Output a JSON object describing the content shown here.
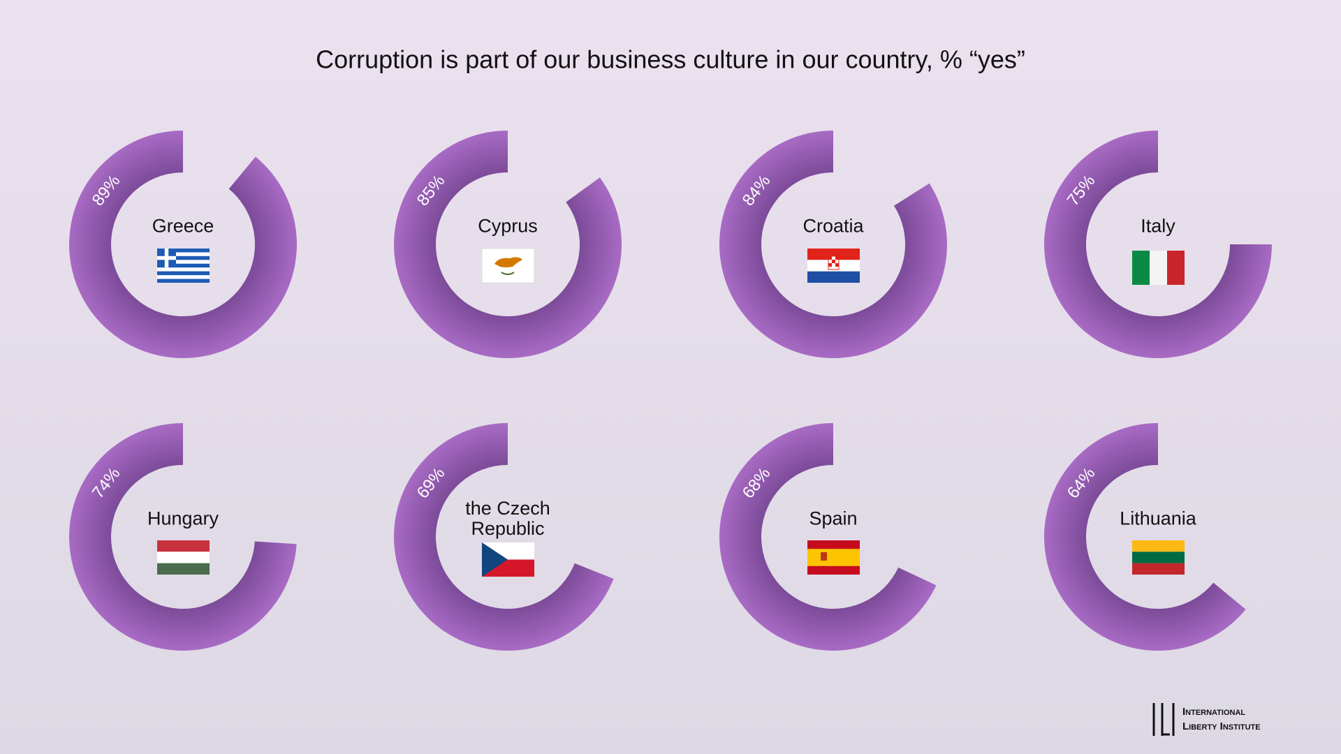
{
  "chart_data": {
    "type": "donut",
    "title": "Corruption is part of our business culture in our country, % “yes”",
    "categories": [
      "Greece",
      "Cyprus",
      "Croatia",
      "Italy",
      "Hungary",
      "the Czech Republic",
      "Spain",
      "Lithuania"
    ],
    "values": [
      89,
      85,
      84,
      75,
      74,
      69,
      68,
      64
    ],
    "value_labels": [
      "89%",
      "85%",
      "84%",
      "75%",
      "74%",
      "69%",
      "68%",
      "64%"
    ],
    "ylim": [
      0,
      100
    ],
    "colors": [
      "#a86bc4",
      "#7c4b99"
    ]
  },
  "logo": {
    "line1": "International",
    "line2": "Liberty Institute"
  }
}
